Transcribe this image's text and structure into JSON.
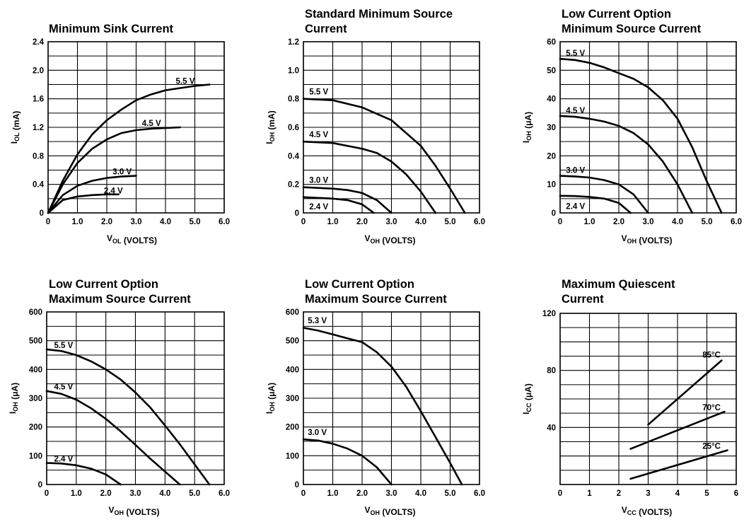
{
  "chart_data": [
    {
      "type": "line",
      "title": [
        "Minimum Sink Current"
      ],
      "ylabel": "IOL (mA)",
      "ylabel_parts": [
        [
          "I",
          false
        ],
        [
          "OL",
          true
        ],
        [
          " (mA)",
          false
        ]
      ],
      "xlabel_parts": [
        [
          "V",
          false
        ],
        [
          "OL",
          true
        ],
        [
          " (VOLTS)",
          false
        ]
      ],
      "xlim": [
        0,
        6
      ],
      "ylim": [
        0,
        2.4
      ],
      "xticks": [
        0,
        1,
        2,
        3,
        4,
        5,
        6
      ],
      "xtick_labels": [
        "0",
        "1.0",
        "2.0",
        "3.0",
        "4.0",
        "5.0",
        "6.0"
      ],
      "yticks": [
        0,
        0.4,
        0.8,
        1.2,
        1.6,
        2.0,
        2.4
      ],
      "ytick_labels": [
        "0",
        "0.4",
        "0.8",
        "1.2",
        "1.6",
        "2.0",
        "2.4"
      ],
      "grid": true,
      "series": [
        {
          "name": "5.5 V",
          "x": [
            0,
            0.5,
            1.0,
            1.5,
            2.0,
            2.5,
            3.0,
            3.5,
            4.0,
            4.5,
            5.0,
            5.5
          ],
          "y": [
            0,
            0.45,
            0.82,
            1.1,
            1.3,
            1.45,
            1.58,
            1.66,
            1.72,
            1.75,
            1.78,
            1.8
          ],
          "label_at": [
            4.35,
            1.85
          ]
        },
        {
          "name": "4.5 V",
          "x": [
            0,
            0.5,
            1.0,
            1.5,
            2.0,
            2.5,
            3.0,
            3.5,
            4.0,
            4.5
          ],
          "y": [
            0,
            0.4,
            0.7,
            0.9,
            1.03,
            1.12,
            1.16,
            1.18,
            1.19,
            1.2
          ],
          "label_at": [
            3.2,
            1.26
          ]
        },
        {
          "name": "3.0 V",
          "x": [
            0,
            0.5,
            1.0,
            1.5,
            2.0,
            2.5,
            3.0
          ],
          "y": [
            0,
            0.25,
            0.38,
            0.45,
            0.49,
            0.51,
            0.52
          ],
          "label_at": [
            2.2,
            0.58
          ]
        },
        {
          "name": "2.4 V",
          "x": [
            0,
            0.5,
            1.0,
            1.5,
            2.0,
            2.4
          ],
          "y": [
            0,
            0.18,
            0.23,
            0.25,
            0.26,
            0.26
          ],
          "label_at": [
            1.9,
            0.31
          ]
        }
      ]
    },
    {
      "type": "line",
      "title": [
        "Standard Minimum Source",
        "Current"
      ],
      "ylabel": "IOH (mA)",
      "ylabel_parts": [
        [
          "I",
          false
        ],
        [
          "OH",
          true
        ],
        [
          " (mA)",
          false
        ]
      ],
      "xlabel_parts": [
        [
          "V",
          false
        ],
        [
          "OH",
          true
        ],
        [
          " (VOLTS)",
          false
        ]
      ],
      "xlim": [
        0,
        6
      ],
      "ylim": [
        0,
        1.2
      ],
      "xticks": [
        0,
        1,
        2,
        3,
        4,
        5,
        6
      ],
      "xtick_labels": [
        "0",
        "1.0",
        "2.0",
        "3.0",
        "4.0",
        "5.0",
        "6.0"
      ],
      "yticks": [
        0,
        0.2,
        0.4,
        0.6,
        0.8,
        1.0,
        1.2
      ],
      "ytick_labels": [
        "0",
        "0.2",
        "0.4",
        "0.6",
        "0.8",
        "1.0",
        "1.2"
      ],
      "grid": true,
      "series": [
        {
          "name": "5.5 V",
          "x": [
            0,
            1.0,
            2.0,
            3.0,
            4.0,
            4.5,
            5.0,
            5.5
          ],
          "y": [
            0.8,
            0.79,
            0.74,
            0.65,
            0.47,
            0.33,
            0.17,
            0
          ],
          "label_at": [
            0.2,
            0.85
          ]
        },
        {
          "name": "4.5 V",
          "x": [
            0,
            1.0,
            2.0,
            2.5,
            3.0,
            3.5,
            4.0,
            4.5
          ],
          "y": [
            0.5,
            0.49,
            0.45,
            0.42,
            0.36,
            0.27,
            0.15,
            0
          ],
          "label_at": [
            0.2,
            0.55
          ]
        },
        {
          "name": "3.0 V",
          "x": [
            0,
            1.0,
            1.5,
            2.0,
            2.5,
            3.0
          ],
          "y": [
            0.18,
            0.17,
            0.16,
            0.14,
            0.09,
            0
          ],
          "label_at": [
            0.2,
            0.23
          ]
        },
        {
          "name": "2.4 V",
          "x": [
            0,
            1.0,
            1.5,
            2.0,
            2.4
          ],
          "y": [
            0.11,
            0.1,
            0.09,
            0.06,
            0
          ],
          "label_at": [
            0.2,
            0.045
          ]
        }
      ]
    },
    {
      "type": "line",
      "title": [
        "Low Current Option",
        "Minimum Source Current"
      ],
      "ylabel": "IOH (μA)",
      "ylabel_parts": [
        [
          "I",
          false
        ],
        [
          "OH",
          true
        ],
        [
          " (μA)",
          false
        ]
      ],
      "xlabel_parts": [
        [
          "V",
          false
        ],
        [
          "OH",
          true
        ],
        [
          " (VOLTS)",
          false
        ]
      ],
      "xlim": [
        0,
        6
      ],
      "ylim": [
        0,
        60
      ],
      "xticks": [
        0,
        1,
        2,
        3,
        4,
        5,
        6
      ],
      "xtick_labels": [
        "0",
        "1.0",
        "2.0",
        "3.0",
        "4.0",
        "5.0",
        "6.0"
      ],
      "yticks": [
        0,
        10,
        20,
        30,
        40,
        50,
        60
      ],
      "ytick_labels": [
        "0",
        "10",
        "20",
        "30",
        "40",
        "50",
        "60"
      ],
      "grid": true,
      "series": [
        {
          "name": "5.5 V",
          "x": [
            0,
            0.5,
            1.0,
            1.5,
            2.0,
            2.5,
            3.0,
            3.5,
            4.0,
            4.5,
            5.0,
            5.5
          ],
          "y": [
            54,
            53.6,
            52.6,
            51,
            49,
            47,
            44,
            39.5,
            33,
            23,
            11,
            0
          ],
          "label_at": [
            0.2,
            56
          ]
        },
        {
          "name": "4.5 V",
          "x": [
            0,
            0.5,
            1.0,
            1.5,
            2.0,
            2.5,
            3.0,
            3.5,
            4.0,
            4.5
          ],
          "y": [
            34,
            33.7,
            33,
            32,
            30.5,
            28,
            24,
            18,
            10,
            0
          ],
          "label_at": [
            0.2,
            36
          ]
        },
        {
          "name": "3.0 V",
          "x": [
            0,
            0.5,
            1.0,
            1.5,
            2.0,
            2.5,
            3.0
          ],
          "y": [
            13,
            12.8,
            12.4,
            11.5,
            10,
            6.5,
            0
          ],
          "label_at": [
            0.2,
            15
          ]
        },
        {
          "name": "2.4 V",
          "x": [
            0,
            0.5,
            1.0,
            1.5,
            2.0,
            2.4
          ],
          "y": [
            6,
            5.9,
            5.6,
            5,
            3.5,
            0
          ],
          "label_at": [
            0.2,
            2.3
          ]
        }
      ]
    },
    {
      "type": "line",
      "title": [
        "Low Current Option",
        "Maximum Source Current"
      ],
      "ylabel": "IOH (μA)",
      "ylabel_parts": [
        [
          "I",
          false
        ],
        [
          "OH",
          true
        ],
        [
          " (μA)",
          false
        ]
      ],
      "xlabel_parts": [
        [
          "V",
          false
        ],
        [
          "OH",
          true
        ],
        [
          " (VOLTS)",
          false
        ]
      ],
      "xlim": [
        0,
        6
      ],
      "ylim": [
        0,
        600
      ],
      "xticks": [
        0,
        1,
        2,
        3,
        4,
        5,
        6
      ],
      "xtick_labels": [
        "0",
        "1.0",
        "2.0",
        "3.0",
        "4.0",
        "5.0",
        "6.0"
      ],
      "yticks": [
        0,
        100,
        200,
        300,
        400,
        500,
        600
      ],
      "ytick_labels": [
        "0",
        "100",
        "200",
        "300",
        "400",
        "500",
        "600"
      ],
      "grid": true,
      "series": [
        {
          "name": "5.5 V",
          "x": [
            0,
            0.5,
            1.0,
            1.5,
            2.0,
            2.5,
            3.0,
            3.5,
            4.0,
            4.5,
            5.0,
            5.5
          ],
          "y": [
            470,
            464,
            450,
            428,
            400,
            365,
            320,
            268,
            205,
            140,
            70,
            0
          ],
          "label_at": [
            0.25,
            485
          ]
        },
        {
          "name": "4.5 V",
          "x": [
            0,
            0.5,
            1.0,
            1.5,
            2.0,
            2.5,
            3.0,
            3.5,
            4.0,
            4.5
          ],
          "y": [
            325,
            315,
            295,
            265,
            228,
            185,
            138,
            90,
            45,
            0
          ],
          "label_at": [
            0.25,
            340
          ]
        },
        {
          "name": "2.4 V",
          "x": [
            0,
            0.5,
            1.0,
            1.5,
            2.0,
            2.5
          ],
          "y": [
            75,
            73,
            67,
            55,
            35,
            0
          ],
          "label_at": [
            0.25,
            90
          ]
        }
      ]
    },
    {
      "type": "line",
      "title": [
        "Low Current Option",
        "Maximum Source Current"
      ],
      "ylabel": "IOH (μA)",
      "ylabel_parts": [
        [
          "I",
          false
        ],
        [
          "OH",
          true
        ],
        [
          " (μA)",
          false
        ]
      ],
      "xlabel_parts": [
        [
          "V",
          false
        ],
        [
          "OH",
          true
        ],
        [
          " (VOLTS)",
          false
        ]
      ],
      "xlim": [
        0,
        6
      ],
      "ylim": [
        0,
        600
      ],
      "xticks": [
        0,
        1,
        2,
        3,
        4,
        5,
        6
      ],
      "xtick_labels": [
        "0",
        "1.0",
        "2.0",
        "3.0",
        "4.0",
        "5.0",
        "6.0"
      ],
      "yticks": [
        0,
        100,
        200,
        300,
        400,
        500,
        600
      ],
      "ytick_labels": [
        "0",
        "100",
        "200",
        "300",
        "400",
        "500",
        "600"
      ],
      "grid": true,
      "series": [
        {
          "name": "5.3 V",
          "x": [
            0,
            0.5,
            1.0,
            1.5,
            2.0,
            2.5,
            3.0,
            3.5,
            4.0,
            4.5,
            5.0,
            5.4
          ],
          "y": [
            545,
            535,
            522,
            508,
            495,
            460,
            410,
            340,
            255,
            165,
            75,
            0
          ],
          "label_at": [
            0.15,
            570
          ]
        },
        {
          "name": "3.0 V",
          "x": [
            0,
            0.5,
            1.0,
            1.5,
            2.0,
            2.5,
            3.0
          ],
          "y": [
            157,
            153,
            142,
            125,
            100,
            60,
            0
          ],
          "label_at": [
            0.15,
            182
          ]
        }
      ]
    },
    {
      "type": "line",
      "title": [
        "Maximum Quiescent",
        "Current"
      ],
      "ylabel": "ICC (μA)",
      "ylabel_parts": [
        [
          "I",
          false
        ],
        [
          "CC",
          true
        ],
        [
          " (μA)",
          false
        ]
      ],
      "xlabel_parts": [
        [
          "V",
          false
        ],
        [
          "CC",
          true
        ],
        [
          " (VOLTS)",
          false
        ]
      ],
      "xlim": [
        0,
        6
      ],
      "ylim": [
        0,
        120
      ],
      "xticks": [
        0,
        1,
        2,
        3,
        4,
        5,
        6
      ],
      "xtick_labels": [
        "0",
        "1",
        "2",
        "3",
        "4",
        "5",
        "6"
      ],
      "yticks": [
        0,
        40,
        80,
        120
      ],
      "ytick_labels": [
        "",
        "40",
        "80",
        "120"
      ],
      "grid": true,
      "series": [
        {
          "name": "85°C",
          "x": [
            3.0,
            5.5
          ],
          "y": [
            42,
            87
          ],
          "label_at": [
            4.85,
            91
          ]
        },
        {
          "name": "70°C",
          "x": [
            2.4,
            5.6
          ],
          "y": [
            25,
            51
          ],
          "label_at": [
            4.85,
            54
          ]
        },
        {
          "name": "25°C",
          "x": [
            2.4,
            5.7
          ],
          "y": [
            4,
            24
          ],
          "label_at": [
            4.85,
            27
          ]
        }
      ]
    }
  ]
}
